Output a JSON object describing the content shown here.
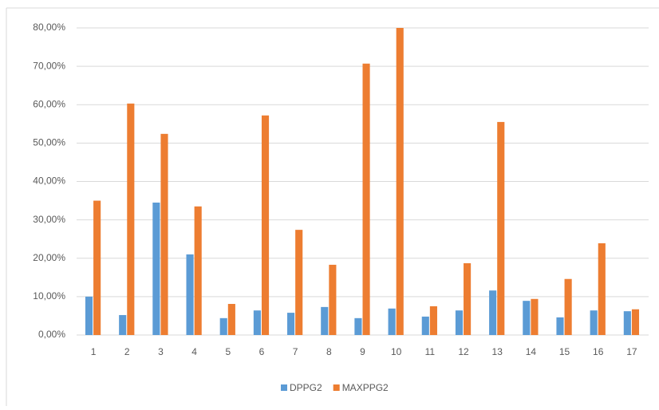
{
  "chart_data": {
    "type": "bar",
    "categories": [
      "1",
      "2",
      "3",
      "4",
      "5",
      "6",
      "7",
      "8",
      "9",
      "10",
      "11",
      "12",
      "13",
      "14",
      "15",
      "16",
      "17"
    ],
    "series": [
      {
        "name": "DPPG2",
        "color": "#5b9bd5",
        "values": [
          10.0,
          5.2,
          34.5,
          21.0,
          4.4,
          6.4,
          5.8,
          7.3,
          4.4,
          6.9,
          4.8,
          6.4,
          11.6,
          8.9,
          4.6,
          6.4,
          6.2
        ]
      },
      {
        "name": "MAXPPG2",
        "color": "#ed7d31",
        "values": [
          35.0,
          60.3,
          52.4,
          33.5,
          8.1,
          57.2,
          27.4,
          18.3,
          70.7,
          80.0,
          7.5,
          18.7,
          55.5,
          9.4,
          14.6,
          23.9,
          6.7
        ]
      }
    ],
    "ylim": [
      0,
      80
    ],
    "yticks": [
      {
        "value": 0,
        "label": "0,00%"
      },
      {
        "value": 10,
        "label": "10,00%"
      },
      {
        "value": 20,
        "label": "20,00%"
      },
      {
        "value": 30,
        "label": "30,00%"
      },
      {
        "value": 40,
        "label": "40,00%"
      },
      {
        "value": 50,
        "label": "50,00%"
      },
      {
        "value": 60,
        "label": "60,00%"
      },
      {
        "value": 70,
        "label": "70,00%"
      },
      {
        "value": 80,
        "label": "80,00%"
      }
    ],
    "grid": true,
    "legend": "bottom"
  }
}
